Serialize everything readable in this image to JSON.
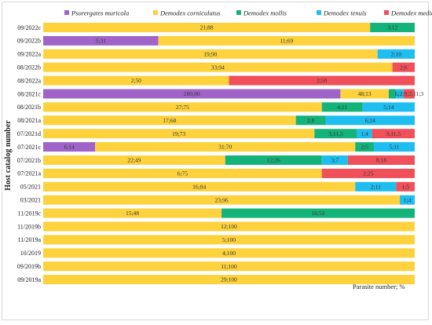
{
  "chart_data": {
    "type": "bar",
    "orientation": "horizontal",
    "stacked": true,
    "percent": true,
    "ylabel": "Host catalog number",
    "xlabel": "Parasite number; %",
    "legend_position": "top",
    "colors": {
      "Psorergates muricola": "#a064c8",
      "Demodex corniculatus": "#fdd23c",
      "Demodex mollis": "#14b37a",
      "Demodex tenuis": "#1ebef0",
      "Demodex medicris": "#f0505a"
    },
    "series": [
      {
        "name": "Psorergates muricola"
      },
      {
        "name": "Demodex corniculatus"
      },
      {
        "name": "Demodex mollis"
      },
      {
        "name": "Demodex tenuis"
      },
      {
        "name": "Demodex medicris"
      }
    ],
    "rows": [
      {
        "category": "09/2022c",
        "segments": [
          {
            "series": 1,
            "value": 88,
            "label": "21;88"
          },
          {
            "series": 2,
            "value": 12,
            "label": "3;12"
          }
        ]
      },
      {
        "category": "09/2022b",
        "segments": [
          {
            "series": 0,
            "value": 31,
            "label": "5;31"
          },
          {
            "series": 1,
            "value": 69,
            "label": "11;69"
          }
        ]
      },
      {
        "category": "09/2022a",
        "segments": [
          {
            "series": 1,
            "value": 90,
            "label": "19;90"
          },
          {
            "series": 3,
            "value": 10,
            "label": "2;10"
          }
        ]
      },
      {
        "category": "08/2022b",
        "segments": [
          {
            "series": 1,
            "value": 94,
            "label": "33;94"
          },
          {
            "series": 4,
            "value": 6,
            "label": "2;6"
          }
        ]
      },
      {
        "category": "08/2022a",
        "segments": [
          {
            "series": 1,
            "value": 50,
            "label": "2;50"
          },
          {
            "series": 4,
            "value": 50,
            "label": "2;50"
          }
        ]
      },
      {
        "category": "08/2021c",
        "segments": [
          {
            "series": 0,
            "value": 80,
            "label": "280;80"
          },
          {
            "series": 1,
            "value": 13,
            "label": "48;13"
          },
          {
            "series": 2,
            "value": 2,
            "label": ""
          },
          {
            "series": 3,
            "value": 2,
            "label": ""
          },
          {
            "series": 4,
            "value": 3,
            "label": "6;2;9;2;11;3"
          }
        ]
      },
      {
        "category": "08/2021b",
        "segments": [
          {
            "series": 1,
            "value": 75,
            "label": "27;75"
          },
          {
            "series": 2,
            "value": 11,
            "label": "4;11"
          },
          {
            "series": 3,
            "value": 14,
            "label": "5;14"
          }
        ]
      },
      {
        "category": "08/2021a",
        "segments": [
          {
            "series": 1,
            "value": 68,
            "label": "17;68"
          },
          {
            "series": 2,
            "value": 8,
            "label": "2;8"
          },
          {
            "series": 3,
            "value": 24,
            "label": "6;24"
          }
        ]
      },
      {
        "category": "07/2021d",
        "segments": [
          {
            "series": 1,
            "value": 73,
            "label": "19;73"
          },
          {
            "series": 2,
            "value": 11.5,
            "label": "3;11,5"
          },
          {
            "series": 3,
            "value": 4,
            "label": "1;4"
          },
          {
            "series": 4,
            "value": 11.5,
            "label": "3;11,5"
          }
        ]
      },
      {
        "category": "07/2021c",
        "segments": [
          {
            "series": 0,
            "value": 14,
            "label": "6;14"
          },
          {
            "series": 1,
            "value": 70,
            "label": "31;70"
          },
          {
            "series": 2,
            "value": 5,
            "label": "2;5"
          },
          {
            "series": 3,
            "value": 11,
            "label": "5;11"
          }
        ]
      },
      {
        "category": "07/2021b",
        "segments": [
          {
            "series": 1,
            "value": 49,
            "label": "22;49"
          },
          {
            "series": 2,
            "value": 26,
            "label": "12;26"
          },
          {
            "series": 3,
            "value": 7,
            "label": "3;7"
          },
          {
            "series": 4,
            "value": 18,
            "label": "8;18"
          }
        ]
      },
      {
        "category": "07/2021a",
        "segments": [
          {
            "series": 1,
            "value": 75,
            "label": "6;75"
          },
          {
            "series": 4,
            "value": 25,
            "label": "2;25"
          }
        ]
      },
      {
        "category": "05/2021",
        "segments": [
          {
            "series": 1,
            "value": 84,
            "label": "16;84"
          },
          {
            "series": 3,
            "value": 11,
            "label": "2;11"
          },
          {
            "series": 4,
            "value": 5,
            "label": "1;5"
          }
        ]
      },
      {
        "category": "03/2021",
        "segments": [
          {
            "series": 1,
            "value": 96,
            "label": "23;96"
          },
          {
            "series": 3,
            "value": 4,
            "label": "1;4"
          }
        ]
      },
      {
        "category": "11/2019c",
        "segments": [
          {
            "series": 1,
            "value": 48,
            "label": "15;48"
          },
          {
            "series": 2,
            "value": 52,
            "label": "16;52"
          }
        ]
      },
      {
        "category": "11/2019b",
        "segments": [
          {
            "series": 1,
            "value": 100,
            "label": "12;100"
          }
        ]
      },
      {
        "category": "11/2019a",
        "segments": [
          {
            "series": 1,
            "value": 100,
            "label": "5;100"
          }
        ]
      },
      {
        "category": "10/2019",
        "segments": [
          {
            "series": 1,
            "value": 100,
            "label": "4;100"
          }
        ]
      },
      {
        "category": "09/2019b",
        "segments": [
          {
            "series": 1,
            "value": 100,
            "label": "11;100"
          }
        ]
      },
      {
        "category": "09/2019a",
        "segments": [
          {
            "series": 1,
            "value": 100,
            "label": "29;100"
          }
        ]
      }
    ]
  }
}
